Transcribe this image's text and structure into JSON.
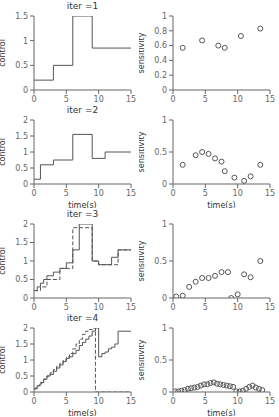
{
  "chart_data": [
    {
      "type": "line",
      "title": "iter =1",
      "y_label": "control",
      "xlim": [
        0,
        15
      ],
      "ylim": [
        0,
        1.5
      ],
      "xticks": [
        0,
        5,
        10,
        15
      ],
      "yticks": [
        0,
        0.5,
        1,
        1.5
      ],
      "grid": false,
      "series": [
        {
          "x": [
            0,
            3,
            3,
            6,
            6,
            9,
            9,
            15
          ],
          "values": [
            0.2,
            0.2,
            0.5,
            0.5,
            1.5,
            1.5,
            0.85,
            0.85
          ],
          "color": "#555555",
          "line_style": "solid"
        }
      ]
    },
    {
      "type": "scatter",
      "y_label": "sensitivity",
      "xlim": [
        0,
        15
      ],
      "ylim": [
        0,
        1
      ],
      "xticks": [
        0,
        5,
        10,
        15
      ],
      "yticks": [
        0,
        0.2,
        0.4,
        0.6,
        0.8,
        1.0
      ],
      "grid": false,
      "series": [
        {
          "x": [
            1.5,
            4.5,
            7.0,
            8.0,
            10.5,
            13.5
          ],
          "values": [
            0.57,
            0.67,
            0.6,
            0.57,
            0.73,
            0.83
          ],
          "color": "#555555",
          "marker": "circle"
        }
      ]
    },
    {
      "type": "line",
      "title": "iter =2",
      "x_label": "time(s)",
      "y_label": "control",
      "xlim": [
        0,
        15
      ],
      "ylim": [
        0,
        2
      ],
      "xticks": [
        0,
        5,
        10,
        15
      ],
      "yticks": [
        0,
        0.5,
        1,
        1.5,
        2
      ],
      "grid": false,
      "series": [
        {
          "x": [
            0,
            1,
            1,
            3,
            3,
            6,
            6,
            9,
            9,
            11,
            11,
            15
          ],
          "values": [
            0.15,
            0.15,
            0.6,
            0.6,
            0.75,
            0.75,
            1.55,
            1.55,
            0.8,
            0.8,
            1.0,
            1.0
          ],
          "color": "#555555",
          "line_style": "solid"
        }
      ]
    },
    {
      "type": "scatter",
      "x_label": "time(s)",
      "y_label": "sensitivity",
      "xlim": [
        0,
        15
      ],
      "ylim": [
        0,
        1
      ],
      "xticks": [
        0,
        5,
        10,
        15
      ],
      "yticks": [
        0,
        0.5,
        1.0
      ],
      "grid": false,
      "series": [
        {
          "x": [
            1.5,
            3.5,
            4.5,
            5.5,
            6.5,
            7.5,
            8.0,
            9.5,
            11.0,
            12.0,
            13.5
          ],
          "values": [
            0.3,
            0.45,
            0.5,
            0.47,
            0.4,
            0.35,
            0.2,
            0.1,
            0.05,
            0.12,
            0.3
          ],
          "color": "#555555",
          "marker": "circle"
        }
      ]
    },
    {
      "type": "line",
      "title": "iter =3",
      "y_label": "control",
      "xlim": [
        0,
        15
      ],
      "ylim": [
        0,
        2
      ],
      "xticks": [
        0,
        5,
        10,
        15
      ],
      "yticks": [
        0,
        0.5,
        1,
        1.5,
        2
      ],
      "grid": false,
      "series": [
        {
          "x": [
            0,
            1,
            1,
            2,
            2,
            4,
            4,
            6,
            6,
            9,
            9,
            10,
            10,
            13,
            13,
            15
          ],
          "values": [
            0.2,
            0.2,
            0.3,
            0.3,
            0.5,
            0.5,
            0.8,
            0.8,
            1.9,
            1.9,
            1.0,
            1.0,
            0.9,
            0.9,
            1.3,
            1.3
          ],
          "color": "#555555",
          "line_style": "dashed"
        },
        {
          "x": [
            0,
            0.5,
            0.5,
            1,
            1,
            1.5,
            1.5,
            2,
            2,
            3,
            3,
            4,
            4,
            5,
            5,
            6,
            6,
            7,
            7,
            9,
            9,
            10,
            10,
            12,
            12,
            13,
            13,
            15
          ],
          "values": [
            0.2,
            0.2,
            0.3,
            0.3,
            0.4,
            0.4,
            0.5,
            0.5,
            0.6,
            0.6,
            0.7,
            0.7,
            0.8,
            0.8,
            0.95,
            0.95,
            1.3,
            1.3,
            2.0,
            2.0,
            1.0,
            1.0,
            0.9,
            0.9,
            1.1,
            1.1,
            1.3,
            1.3
          ],
          "color": "#555555",
          "line_style": "solid"
        }
      ]
    },
    {
      "type": "scatter",
      "y_label": "sensitivity",
      "xlim": [
        0,
        15
      ],
      "ylim": [
        0,
        1
      ],
      "xticks": [
        0,
        5,
        10,
        15
      ],
      "yticks": [
        0,
        0.5,
        1.0
      ],
      "grid": false,
      "series": [
        {
          "x": [
            0.5,
            1.5,
            2.5,
            3.5,
            4.5,
            5.5,
            6.5,
            7.5,
            8.5,
            9.0,
            10.0,
            11.0,
            12.0,
            13.5
          ],
          "values": [
            0.02,
            0.03,
            0.15,
            0.22,
            0.27,
            0.27,
            0.3,
            0.35,
            0.35,
            0.0,
            0.05,
            0.32,
            0.28,
            0.5
          ],
          "color": "#555555",
          "marker": "circle"
        }
      ]
    },
    {
      "type": "line",
      "title": "iter =4",
      "x_label": "time(s)",
      "y_label": "control",
      "xlim": [
        0,
        15
      ],
      "ylim": [
        0,
        2
      ],
      "xticks": [
        0,
        5,
        10,
        15
      ],
      "yticks": [
        0,
        0.5,
        1,
        1.5,
        2
      ],
      "grid": false,
      "series": [
        {
          "x": [
            0,
            0.5,
            0.5,
            1.0,
            1.0,
            1.5,
            1.5,
            2.0,
            2.0,
            2.5,
            2.5,
            3.0,
            3.0,
            3.5,
            3.5,
            4.0,
            4.0,
            4.5,
            4.5,
            5.0,
            5.0,
            5.5,
            5.5,
            6.0,
            6.0,
            6.5,
            6.5,
            7.0,
            7.0,
            7.5,
            7.5,
            8.0,
            8.0,
            8.5,
            8.5,
            9.0,
            9.0,
            9.5,
            9.5,
            10.0,
            10.0,
            15
          ],
          "values": [
            0.1,
            0.1,
            0.2,
            0.2,
            0.3,
            0.3,
            0.4,
            0.4,
            0.5,
            0.5,
            0.6,
            0.6,
            0.7,
            0.7,
            0.8,
            0.8,
            0.9,
            0.9,
            1.0,
            1.0,
            1.1,
            1.1,
            1.2,
            1.2,
            1.35,
            1.35,
            1.5,
            1.5,
            1.65,
            1.65,
            1.8,
            1.8,
            1.9,
            1.9,
            1.95,
            1.95,
            2.0,
            2.0,
            0.0,
            0.0,
            0.0,
            0.0
          ],
          "color": "#555555",
          "line_style": "dashed"
        },
        {
          "x": [
            0,
            0.3,
            0.3,
            0.6,
            0.6,
            0.9,
            0.9,
            1.2,
            1.2,
            1.5,
            1.5,
            2.0,
            2.0,
            2.5,
            2.5,
            3.0,
            3.0,
            3.5,
            3.5,
            4.0,
            4.0,
            4.5,
            4.5,
            5.0,
            5.0,
            5.5,
            5.5,
            6.0,
            6.0,
            6.5,
            6.5,
            7.0,
            7.0,
            7.5,
            7.5,
            8.0,
            8.0,
            8.5,
            8.5,
            9.0,
            9.0,
            9.5,
            9.5,
            10.0,
            10.0,
            10.5,
            10.5,
            11.0,
            11.0,
            11.5,
            11.5,
            12.0,
            12.0,
            12.5,
            12.5,
            13.0,
            13.0,
            15
          ],
          "values": [
            0.1,
            0.1,
            0.15,
            0.15,
            0.2,
            0.2,
            0.25,
            0.25,
            0.3,
            0.3,
            0.4,
            0.4,
            0.5,
            0.5,
            0.55,
            0.55,
            0.65,
            0.65,
            0.75,
            0.75,
            0.85,
            0.85,
            0.95,
            0.95,
            1.05,
            1.05,
            1.1,
            1.1,
            1.2,
            1.2,
            1.3,
            1.3,
            1.45,
            1.45,
            1.55,
            1.55,
            1.65,
            1.65,
            1.75,
            1.75,
            1.9,
            1.9,
            2.0,
            2.0,
            1.1,
            1.1,
            1.2,
            1.2,
            1.25,
            1.25,
            1.35,
            1.35,
            1.4,
            1.4,
            1.5,
            1.5,
            1.9,
            1.9
          ],
          "color": "#555555",
          "line_style": "solid"
        }
      ]
    },
    {
      "type": "scatter",
      "x_label": "time(s)",
      "y_label": "sensitivity",
      "xlim": [
        0,
        15
      ],
      "ylim": [
        0,
        1
      ],
      "xticks": [
        0,
        5,
        10,
        15
      ],
      "yticks": [
        0,
        0.5,
        1.0
      ],
      "grid": false,
      "series": [
        {
          "x": [
            0.3,
            0.8,
            1.3,
            1.8,
            2.3,
            2.8,
            3.3,
            3.8,
            4.3,
            4.8,
            5.3,
            5.8,
            6.3,
            6.8,
            7.3,
            7.8,
            8.3,
            8.8,
            9.3,
            9.8,
            10.3,
            10.8,
            11.3,
            11.8,
            12.3,
            12.8,
            13.3,
            13.8
          ],
          "values": [
            0.01,
            0.01,
            0.02,
            0.03,
            0.05,
            0.06,
            0.07,
            0.08,
            0.1,
            0.12,
            0.12,
            0.14,
            0.15,
            0.13,
            0.12,
            0.11,
            0.1,
            0.09,
            0.08,
            0.01,
            0.01,
            0.02,
            0.05,
            0.08,
            0.1,
            0.07,
            0.05,
            0.03
          ],
          "color": "#555555",
          "marker": "circle"
        }
      ]
    }
  ]
}
